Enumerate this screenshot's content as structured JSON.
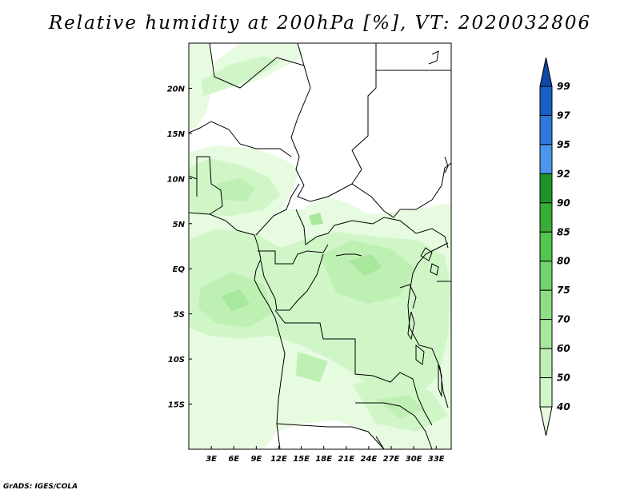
{
  "title": "Relative humidity at 200hPa [%], VT: 2020032806",
  "credit": "GrADS: IGES/COLA",
  "map": {
    "lon_labels": [
      "3E",
      "6E",
      "9E",
      "12E",
      "15E",
      "18E",
      "21E",
      "24E",
      "27E",
      "30E",
      "33E"
    ],
    "lon_values": [
      3,
      6,
      9,
      12,
      15,
      18,
      21,
      24,
      27,
      30,
      33
    ],
    "lat_labels": [
      "20N",
      "15N",
      "10N",
      "5N",
      "EQ",
      "5S",
      "10S",
      "15S"
    ],
    "lat_values": [
      20,
      15,
      10,
      5,
      0,
      -5,
      -10,
      -15
    ],
    "lon_range": [
      0,
      35
    ],
    "lat_range": [
      -20,
      25
    ]
  },
  "colorbar": {
    "levels": [
      "40",
      "50",
      "60",
      "70",
      "75",
      "80",
      "85",
      "90",
      "92",
      "95",
      "97",
      "99"
    ],
    "colors": [
      "#e6fbe0",
      "#d0f6c8",
      "#bff0b3",
      "#a8e89c",
      "#8fde86",
      "#72d46c",
      "#53c64f",
      "#36ad36",
      "#1e9425",
      "#4a96ea",
      "#2c78dc",
      "#1a5fc6",
      "#0d4aa8"
    ]
  },
  "chart_data": {
    "type": "heatmap",
    "title": "Relative humidity at 200hPa [%], VT: 2020032806",
    "variable": "Relative humidity",
    "units": "%",
    "level": "200hPa",
    "valid_time": "2020032806",
    "contour_levels": [
      40,
      50,
      60,
      70,
      75,
      80,
      85,
      90,
      92,
      95,
      97,
      99
    ],
    "lon_range": [
      0,
      35
    ],
    "lat_range": [
      -20,
      25
    ],
    "xticks": [
      "3E",
      "6E",
      "9E",
      "12E",
      "15E",
      "18E",
      "21E",
      "24E",
      "27E",
      "30E",
      "33E"
    ],
    "yticks": [
      "20N",
      "15N",
      "10N",
      "5N",
      "EQ",
      "5S",
      "10S",
      "15S"
    ]
  }
}
